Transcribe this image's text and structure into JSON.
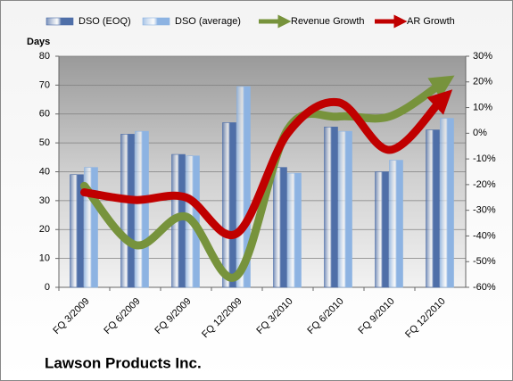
{
  "chart_data": {
    "type": "bar",
    "title": "Lawson Products Inc.",
    "y_label": "Days",
    "categories": [
      "FQ 3/2009",
      "FQ 6/2009",
      "FQ 9/2009",
      "FQ 12/2009",
      "FQ 3/2010",
      "FQ 6/2010",
      "FQ 9/2010",
      "FQ 12/2010"
    ],
    "series": [
      {
        "name": "DSO (EOQ)",
        "type": "bar",
        "color": "#4f6fa8",
        "values": [
          39,
          53,
          46,
          57,
          41.5,
          55.5,
          40,
          54.5
        ]
      },
      {
        "name": "DSO (average)",
        "type": "bar",
        "color": "#8db3e2",
        "values": [
          41.5,
          54,
          45.5,
          69.5,
          39.5,
          54,
          44,
          58.5
        ]
      },
      {
        "name": "Revenue Growth",
        "type": "line",
        "axis": "y2",
        "color": "#77933c",
        "values": [
          -20.5,
          -43.5,
          -32.5,
          -55.5,
          1.5,
          6.5,
          6.5,
          19
        ]
      },
      {
        "name": "AR Growth",
        "type": "line",
        "axis": "y2",
        "color": "#c00000",
        "values": [
          -23,
          -26,
          -25,
          -39,
          0,
          12,
          -6.5,
          12.5
        ]
      }
    ],
    "ylim": [
      0,
      80
    ],
    "yticks": [
      0,
      10,
      20,
      30,
      40,
      50,
      60,
      70,
      80
    ],
    "y2lim": [
      -60,
      30
    ],
    "y2ticks": [
      {
        "value": -60,
        "label": "-60%"
      },
      {
        "value": -50,
        "label": "-50%"
      },
      {
        "value": -40,
        "label": "-40%"
      },
      {
        "value": -30,
        "label": "-30%"
      },
      {
        "value": -20,
        "label": "-20%"
      },
      {
        "value": -10,
        "label": "-10%"
      },
      {
        "value": 0,
        "label": "0%"
      },
      {
        "value": 10,
        "label": "10%"
      },
      {
        "value": 20,
        "label": "20%"
      },
      {
        "value": 30,
        "label": "30%"
      }
    ],
    "grid": true,
    "legend": "top"
  }
}
